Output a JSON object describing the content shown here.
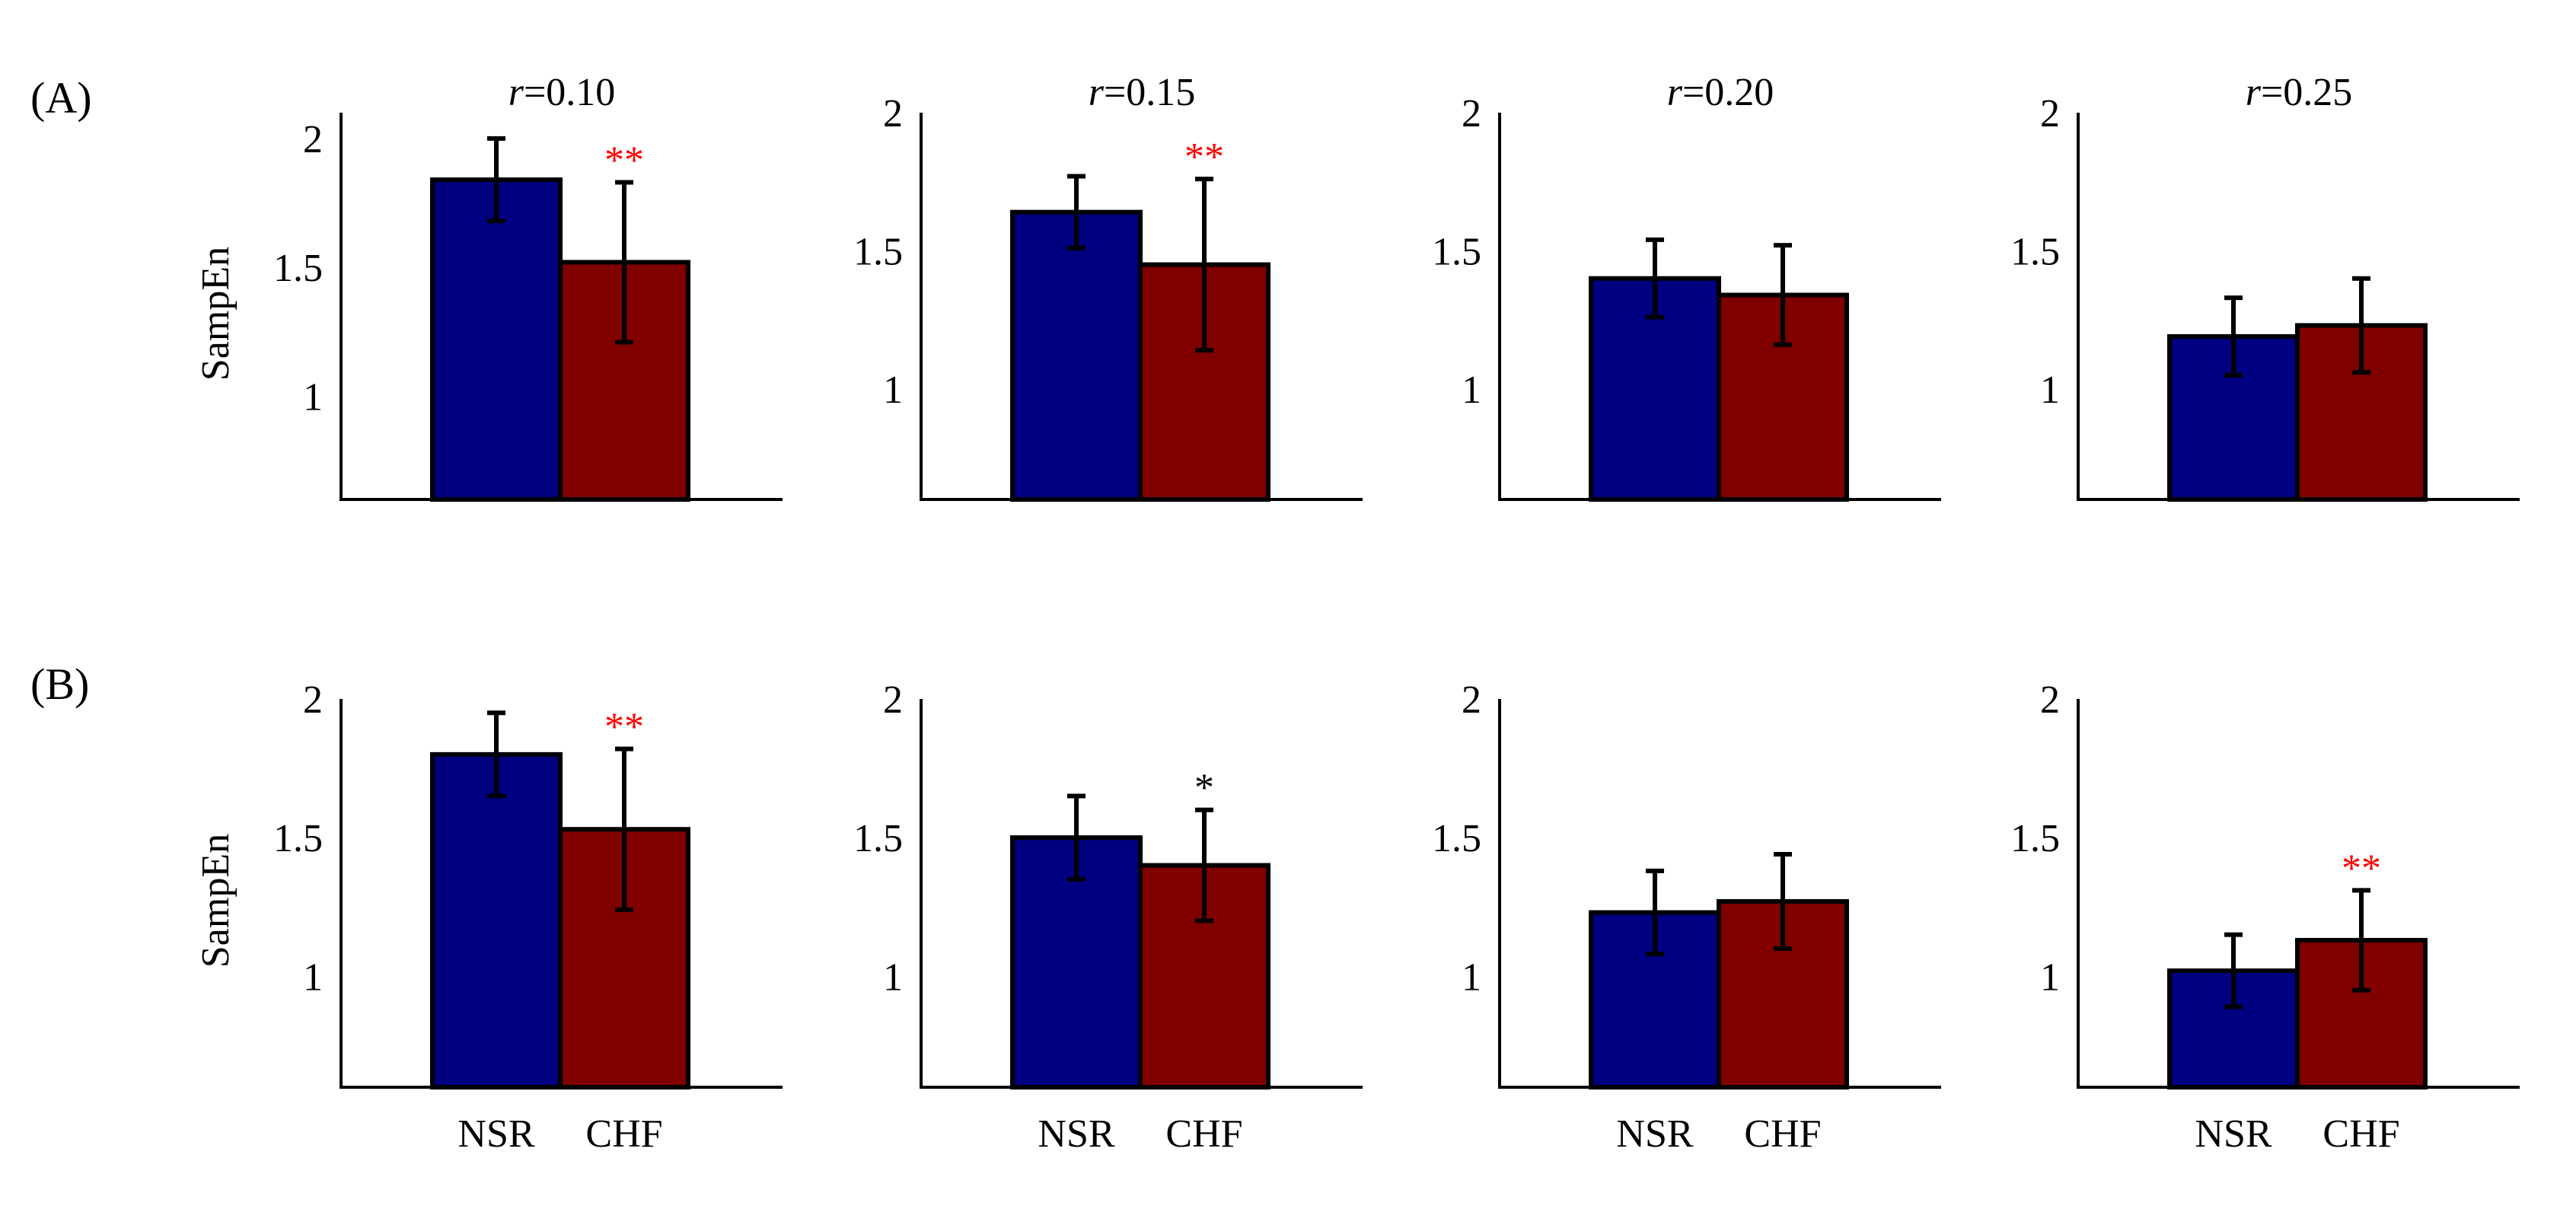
{
  "colors": {
    "NSR": "#000080",
    "CHF": "#800000",
    "sig_red": "#ff0000",
    "sig_black": "#000000"
  },
  "chart_data": [
    {
      "type": "bar",
      "row": "(A)",
      "title_var": "r",
      "title_rest": "=0.10",
      "ylabel": "SampEn",
      "ylim": [
        0.6,
        2.1
      ],
      "yticks": [
        "1",
        "1.5",
        "2"
      ],
      "categories": [
        "NSR",
        "CHF"
      ],
      "xtick_labels_shown": false,
      "values": [
        1.84,
        1.52
      ],
      "errors": [
        0.16,
        0.31
      ],
      "significance": [
        "",
        "**"
      ],
      "significance_color": "red"
    },
    {
      "type": "bar",
      "row": "(A)",
      "title_var": "r",
      "title_rest": "=0.15",
      "ylabel": "",
      "ylim": [
        0.6,
        2.0
      ],
      "yticks": [
        "1",
        "1.5",
        "2"
      ],
      "categories": [
        "NSR",
        "CHF"
      ],
      "xtick_labels_shown": false,
      "values": [
        1.64,
        1.45
      ],
      "errors": [
        0.13,
        0.31
      ],
      "significance": [
        "",
        "**"
      ],
      "significance_color": "red"
    },
    {
      "type": "bar",
      "row": "(A)",
      "title_var": "r",
      "title_rest": "=0.20",
      "ylabel": "",
      "ylim": [
        0.6,
        2.0
      ],
      "yticks": [
        "1",
        "1.5",
        "2"
      ],
      "categories": [
        "NSR",
        "CHF"
      ],
      "xtick_labels_shown": false,
      "values": [
        1.4,
        1.34
      ],
      "errors": [
        0.14,
        0.18
      ],
      "significance": [
        "",
        ""
      ],
      "significance_color": ""
    },
    {
      "type": "bar",
      "row": "(A)",
      "title_var": "r",
      "title_rest": "=0.25",
      "ylabel": "",
      "ylim": [
        0.6,
        2.0
      ],
      "yticks": [
        "1",
        "1.5",
        "2"
      ],
      "categories": [
        "NSR",
        "CHF"
      ],
      "xtick_labels_shown": false,
      "values": [
        1.19,
        1.23
      ],
      "errors": [
        0.14,
        0.17
      ],
      "significance": [
        "",
        ""
      ],
      "significance_color": ""
    },
    {
      "type": "bar",
      "row": "(B)",
      "title_var": "",
      "title_rest": "",
      "ylabel": "SampEn",
      "ylim": [
        0.6,
        2.0
      ],
      "yticks": [
        "1",
        "1.5",
        "2"
      ],
      "categories": [
        "NSR",
        "CHF"
      ],
      "xtick_labels_shown": true,
      "values": [
        1.8,
        1.53
      ],
      "errors": [
        0.15,
        0.29
      ],
      "significance": [
        "",
        "**"
      ],
      "significance_color": "red"
    },
    {
      "type": "bar",
      "row": "(B)",
      "title_var": "",
      "title_rest": "",
      "ylabel": "",
      "ylim": [
        0.6,
        2.0
      ],
      "yticks": [
        "1",
        "1.5",
        "2"
      ],
      "categories": [
        "NSR",
        "CHF"
      ],
      "xtick_labels_shown": true,
      "values": [
        1.5,
        1.4
      ],
      "errors": [
        0.15,
        0.2
      ],
      "significance": [
        "",
        "*"
      ],
      "significance_color": "black"
    },
    {
      "type": "bar",
      "row": "(B)",
      "title_var": "",
      "title_rest": "",
      "ylabel": "",
      "ylim": [
        0.6,
        2.0
      ],
      "yticks": [
        "1",
        "1.5",
        "2"
      ],
      "categories": [
        "NSR",
        "CHF"
      ],
      "xtick_labels_shown": true,
      "values": [
        1.23,
        1.27
      ],
      "errors": [
        0.15,
        0.17
      ],
      "significance": [
        "",
        ""
      ],
      "significance_color": ""
    },
    {
      "type": "bar",
      "row": "(B)",
      "title_var": "",
      "title_rest": "",
      "ylabel": "",
      "ylim": [
        0.6,
        2.0
      ],
      "yticks": [
        "1",
        "1.5",
        "2"
      ],
      "categories": [
        "NSR",
        "CHF"
      ],
      "xtick_labels_shown": true,
      "values": [
        1.02,
        1.13
      ],
      "errors": [
        0.13,
        0.18
      ],
      "significance": [
        "",
        "**"
      ],
      "significance_color": "red"
    }
  ],
  "panel_labels": [
    "(A)",
    "(B)"
  ]
}
